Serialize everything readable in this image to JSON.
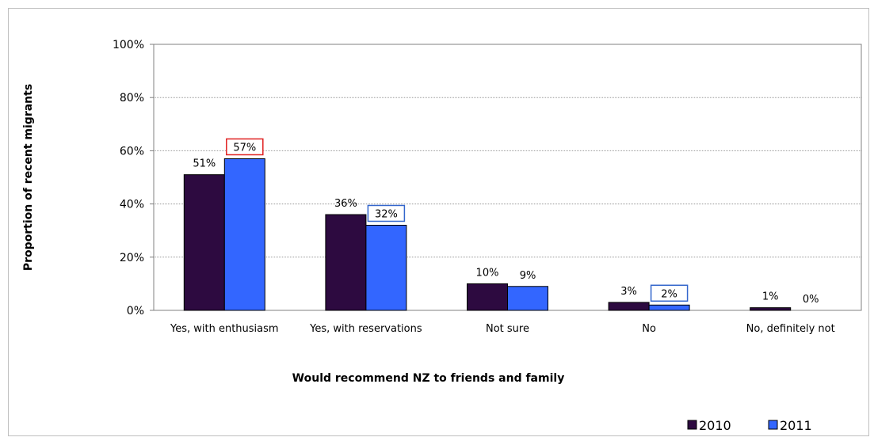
{
  "chart_data": {
    "type": "bar",
    "title": "",
    "xlabel": "Would recommend NZ to friends and family",
    "ylabel": "Proportion of recent migrants",
    "ylim": [
      0,
      100
    ],
    "yticks": [
      "0%",
      "20%",
      "40%",
      "60%",
      "80%",
      "100%"
    ],
    "grid": true,
    "legend_position": "bottom-right",
    "categories": [
      "Yes, with enthusiasm",
      "Yes, with reservations",
      "Not sure",
      "No",
      "No, definitely not"
    ],
    "series": [
      {
        "name": "2010",
        "color": "#2d0a40",
        "values": [
          51,
          36,
          10,
          3,
          1
        ],
        "labels": [
          "51%",
          "36%",
          "10%",
          "3%",
          "1%"
        ],
        "label_box": [
          "",
          "",
          "",
          "",
          ""
        ]
      },
      {
        "name": "2011",
        "color": "#3366ff",
        "values": [
          57,
          32,
          9,
          2,
          0
        ],
        "labels": [
          "57%",
          "32%",
          "9%",
          "2%",
          "0%"
        ],
        "label_box": [
          "#e02020",
          "#3366cc",
          "",
          "#3366cc",
          ""
        ]
      }
    ]
  }
}
